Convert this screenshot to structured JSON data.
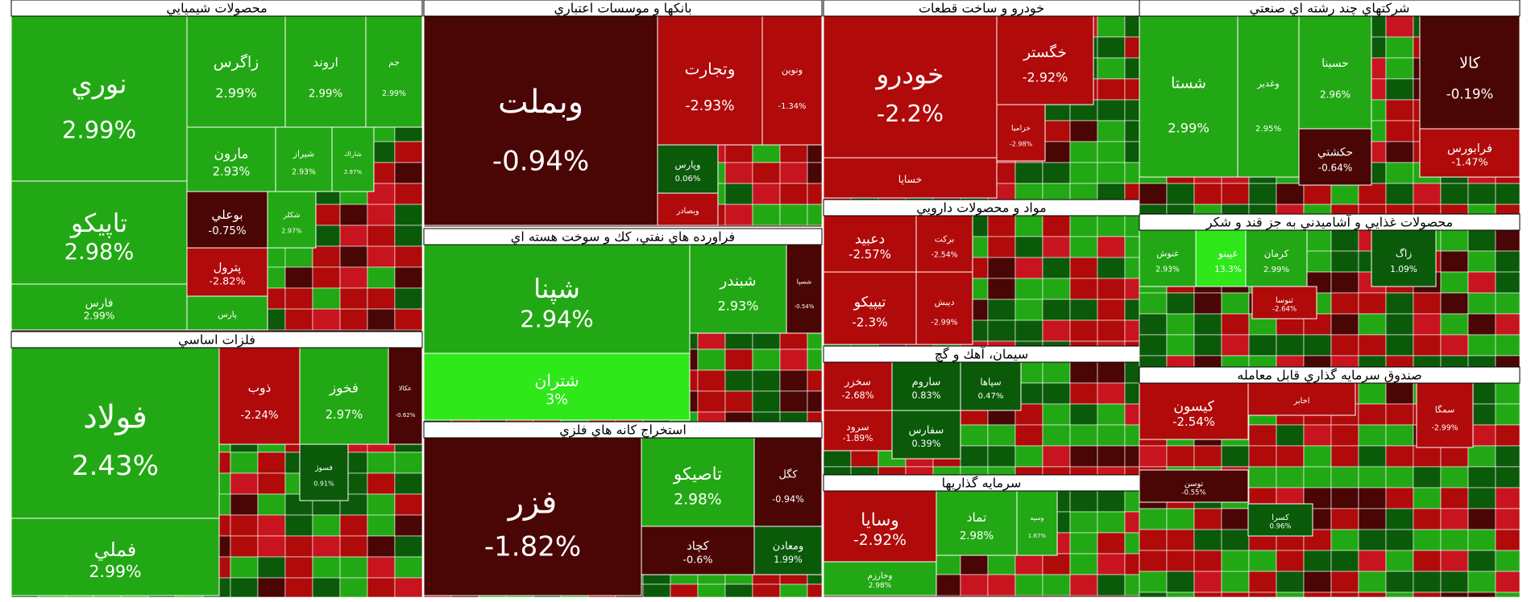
{
  "chart_data": {
    "type": "treemap",
    "colors": {
      "dark_red": "#4a0505",
      "red": "#b00a0a",
      "light_red": "#c8141e",
      "dark_green": "#0a5a0a",
      "green": "#22a814",
      "bright_green": "#2ee81a",
      "header_bg": "#ffffff"
    },
    "sectors": [
      {
        "name": "محصولات شيميايي",
        "stocks": [
          {
            "name": "نوري",
            "change": "2.99%",
            "tone": "green"
          },
          {
            "name": "زاگرس",
            "change": "2.99%",
            "tone": "green"
          },
          {
            "name": "اروند",
            "change": "2.99%",
            "tone": "green"
          },
          {
            "name": "جم",
            "change": "2.99%",
            "tone": "green"
          },
          {
            "name": "تاپيكو",
            "change": "2.98%",
            "tone": "green"
          },
          {
            "name": "مارون",
            "change": "2.93%",
            "tone": "green"
          },
          {
            "name": "شيراز",
            "change": "2.93%",
            "tone": "green"
          },
          {
            "name": "شاراك",
            "change": "2.97%",
            "tone": "green"
          },
          {
            "name": "بوعلي",
            "change": "-0.75%",
            "tone": "dark_red"
          },
          {
            "name": "پترول",
            "change": "-2.82%",
            "tone": "red"
          },
          {
            "name": "فارس",
            "change": "2.99%",
            "tone": "green"
          },
          {
            "name": "شكلر",
            "change": "2.97%",
            "tone": "green"
          },
          {
            "name": "پارس",
            "change": "",
            "tone": "green"
          }
        ]
      },
      {
        "name": "بانكها و موسسات اعتباري",
        "stocks": [
          {
            "name": "وبملت",
            "change": "-0.94%",
            "tone": "dark_red"
          },
          {
            "name": "وتجارت",
            "change": "-2.93%",
            "tone": "red"
          },
          {
            "name": "ونوين",
            "change": "-1.34%",
            "tone": "red"
          },
          {
            "name": "وپارس",
            "change": "0.06%",
            "tone": "dark_green"
          },
          {
            "name": "وبصادر",
            "change": "",
            "tone": "red"
          }
        ]
      },
      {
        "name": "فراورده هاي نفتي، كك و سوخت هسته اي",
        "stocks": [
          {
            "name": "شپنا",
            "change": "2.94%",
            "tone": "green"
          },
          {
            "name": "شبندر",
            "change": "2.93%",
            "tone": "green"
          },
          {
            "name": "شسپا",
            "change": "-0.54%",
            "tone": "dark_red"
          },
          {
            "name": "شتران",
            "change": "3%",
            "tone": "bright_green"
          }
        ]
      },
      {
        "name": "فلزات اساسي",
        "stocks": [
          {
            "name": "فولاد",
            "change": "2.43%",
            "tone": "green"
          },
          {
            "name": "ذوب",
            "change": "-2.24%",
            "tone": "red"
          },
          {
            "name": "فخوز",
            "change": "2.97%",
            "tone": "green"
          },
          {
            "name": "عكالا",
            "change": "-0.62%",
            "tone": "dark_red"
          },
          {
            "name": "فملي",
            "change": "2.99%",
            "tone": "green"
          },
          {
            "name": "فسوژ",
            "change": "0.91%",
            "tone": "dark_green"
          }
        ]
      },
      {
        "name": "استخراج كانه هاي فلزي",
        "stocks": [
          {
            "name": "فزر",
            "change": "-1.82%",
            "tone": "dark_red"
          },
          {
            "name": "تاصيكو",
            "change": "2.98%",
            "tone": "green"
          },
          {
            "name": "كگل",
            "change": "-0.94%",
            "tone": "dark_red"
          },
          {
            "name": "كچاد",
            "change": "-0.6%",
            "tone": "dark_red"
          },
          {
            "name": "ومعادن",
            "change": "1.99%",
            "tone": "dark_green"
          }
        ]
      },
      {
        "name": "خودرو و ساخت قطعات",
        "stocks": [
          {
            "name": "خودرو",
            "change": "-2.2%",
            "tone": "red"
          },
          {
            "name": "خگستر",
            "change": "-2.92%",
            "tone": "red"
          },
          {
            "name": "خساپا",
            "change": "",
            "tone": "red"
          },
          {
            "name": "خزاميا",
            "change": "-2.98%",
            "tone": "red"
          }
        ]
      },
      {
        "name": "مواد و محصولات دارويي",
        "stocks": [
          {
            "name": "دعبيد",
            "change": "-2.57%",
            "tone": "red"
          },
          {
            "name": "بركت",
            "change": "-2.54%",
            "tone": "red"
          },
          {
            "name": "تيپيكو",
            "change": "-2.3%",
            "tone": "red"
          },
          {
            "name": "ديبش",
            "change": "-2.99%",
            "tone": "red"
          }
        ]
      },
      {
        "name": "سيمان، آهك و گچ",
        "stocks": [
          {
            "name": "سخزر",
            "change": "-2.68%",
            "tone": "red"
          },
          {
            "name": "ساروم",
            "change": "0.83%",
            "tone": "dark_green"
          },
          {
            "name": "سپاها",
            "change": "0.47%",
            "tone": "dark_green"
          },
          {
            "name": "سفارس",
            "change": "0.39%",
            "tone": "dark_green"
          },
          {
            "name": "سرود",
            "change": "-1.89%",
            "tone": "red"
          }
        ]
      },
      {
        "name": "سرمايه گذاريها",
        "stocks": [
          {
            "name": "وسايا",
            "change": "-2.92%",
            "tone": "red"
          },
          {
            "name": "تماد",
            "change": "2.98%",
            "tone": "green"
          },
          {
            "name": "وخارزم",
            "change": "2.98%",
            "tone": "green"
          },
          {
            "name": "وسپه",
            "change": "1.67%",
            "tone": "green"
          }
        ]
      },
      {
        "name": "شركتهاي چند رشته اي صنعتي",
        "stocks": [
          {
            "name": "شستا",
            "change": "2.99%",
            "tone": "green"
          },
          {
            "name": "وغدير",
            "change": "2.95%",
            "tone": "green"
          },
          {
            "name": "حسينا",
            "change": "2.96%",
            "tone": "green"
          },
          {
            "name": "كالا",
            "change": "-0.19%",
            "tone": "dark_red"
          },
          {
            "name": "فرابورس",
            "change": "-1.47%",
            "tone": "red"
          },
          {
            "name": "حكشتي",
            "change": "-0.64%",
            "tone": "dark_red"
          }
        ]
      },
      {
        "name": "محصولات غذايي و آشاميدني به جز قند و شكر",
        "stocks": [
          {
            "name": "غنوش",
            "change": "2.93%",
            "tone": "green"
          },
          {
            "name": "غپينو",
            "change": "13.3%",
            "tone": "bright_green"
          },
          {
            "name": "كرمان",
            "change": "2.99%",
            "tone": "green"
          },
          {
            "name": "زاگ",
            "change": "1.09%",
            "tone": "dark_green"
          },
          {
            "name": "ثنوسا",
            "change": "-2.64%",
            "tone": "red"
          }
        ]
      },
      {
        "name": "صندوق سرمايه گذاري قابل معامله",
        "stocks": [
          {
            "name": "كيسون",
            "change": "-2.54%",
            "tone": "red"
          },
          {
            "name": "اخابر",
            "change": "",
            "tone": "red"
          },
          {
            "name": "توسن",
            "change": "-0.55%",
            "tone": "dark_red"
          },
          {
            "name": "سمگا",
            "change": "-2.99%",
            "tone": "red"
          },
          {
            "name": "كسرا",
            "change": "0.96%",
            "tone": "dark_green"
          }
        ]
      }
    ]
  }
}
